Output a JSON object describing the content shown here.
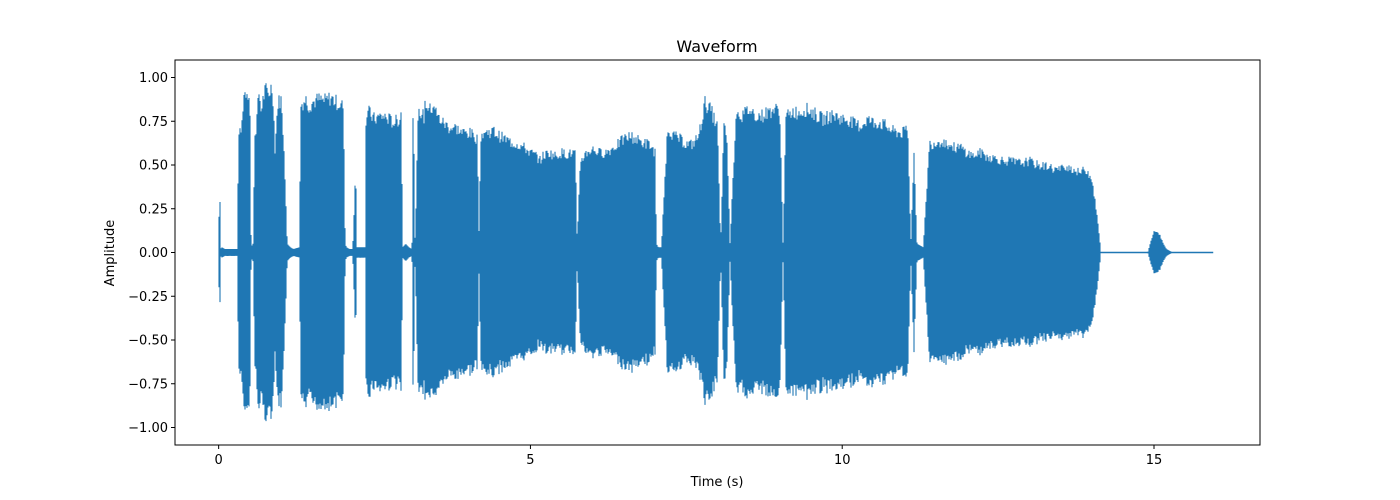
{
  "chart_data": {
    "type": "line",
    "title": "Waveform",
    "xlabel": "Time (s)",
    "ylabel": "Amplitude",
    "xlim": [
      -0.7,
      16.7
    ],
    "ylim": [
      -1.1,
      1.1
    ],
    "xticks": [
      0,
      5,
      10,
      15
    ],
    "xtick_labels": [
      "0",
      "5",
      "10",
      "15"
    ],
    "yticks": [
      1.0,
      0.75,
      0.5,
      0.25,
      0.0,
      -0.25,
      -0.5,
      -0.75,
      -1.0
    ],
    "ytick_labels": [
      "1.00",
      "0.75",
      "0.50",
      "0.25",
      "0.00",
      "−0.25",
      "−0.50",
      "−0.75",
      "−1.00"
    ],
    "grid": false,
    "legend": false,
    "color": "#1f77b4",
    "series": [
      {
        "envelope": {
          "t": [
            0.0,
            0.01,
            0.02,
            0.03,
            0.05,
            0.1,
            0.2,
            0.3,
            0.32,
            0.35,
            0.38,
            0.4,
            0.45,
            0.5,
            0.52,
            0.55,
            0.58,
            0.6,
            0.65,
            0.68,
            0.7,
            0.75,
            0.8,
            0.85,
            0.88,
            0.9,
            0.95,
            1.0,
            1.05,
            1.1,
            1.15,
            1.2,
            1.3,
            1.31,
            1.35,
            1.4,
            1.45,
            1.5,
            1.6,
            1.7,
            1.8,
            1.9,
            2.0,
            2.03,
            2.05,
            2.1,
            2.15,
            2.2,
            2.21,
            2.25,
            2.3,
            2.35,
            2.36,
            2.4,
            2.45,
            2.5,
            2.6,
            2.7,
            2.8,
            2.9,
            2.93,
            2.95,
            3.0,
            3.05,
            3.1,
            3.12,
            3.15,
            3.2,
            3.25,
            3.3,
            3.31,
            3.35,
            3.4,
            3.45,
            3.5,
            3.55,
            3.6,
            3.7,
            3.8,
            3.9,
            4.0,
            4.1,
            4.15,
            4.18,
            4.2,
            4.25,
            4.3,
            4.4,
            4.5,
            4.6,
            4.7,
            4.8,
            4.9,
            5.0,
            5.1,
            5.15,
            5.2,
            5.3,
            5.4,
            5.5,
            5.6,
            5.7,
            5.72,
            5.75,
            5.8,
            5.9,
            6.0,
            6.1,
            6.2,
            6.3,
            6.4,
            6.5,
            6.6,
            6.7,
            6.8,
            6.9,
            7.0,
            7.02,
            7.05,
            7.1,
            7.2,
            7.3,
            7.4,
            7.5,
            7.6,
            7.7,
            7.8,
            7.9,
            8.0,
            8.05,
            8.1,
            8.15,
            8.2,
            8.3,
            8.4,
            8.5,
            8.6,
            8.7,
            8.8,
            8.9,
            9.0,
            9.05,
            9.1,
            9.15,
            9.2,
            9.3,
            9.4,
            9.5,
            9.6,
            9.7,
            9.8,
            9.9,
            10.0,
            10.1,
            10.2,
            10.3,
            10.4,
            10.5,
            10.6,
            10.7,
            10.8,
            10.9,
            11.0,
            11.05,
            11.1,
            11.15,
            11.2,
            11.3,
            11.4,
            11.5,
            11.6,
            11.7,
            11.8,
            11.9,
            12.0,
            12.1,
            12.2,
            12.3,
            12.4,
            12.5,
            12.6,
            12.7,
            12.8,
            12.9,
            13.0,
            13.1,
            13.2,
            13.3,
            13.4,
            13.5,
            13.6,
            13.7,
            13.8,
            13.9,
            14.0,
            14.05,
            14.1,
            14.15,
            14.2,
            14.3,
            14.5,
            14.7,
            14.9,
            15.0,
            15.05,
            15.1,
            15.15,
            15.2,
            15.25,
            15.3,
            15.4,
            15.6,
            15.8,
            15.9,
            15.95
          ],
          "amp": [
            0.0,
            0.38,
            0.37,
            0.02,
            0.03,
            0.02,
            0.02,
            0.02,
            0.75,
            0.7,
            0.8,
            0.95,
            0.97,
            0.95,
            0.05,
            0.03,
            0.7,
            0.75,
            0.97,
            0.85,
            0.9,
            0.98,
            0.95,
            1.0,
            0.9,
            0.6,
            0.9,
            0.92,
            0.62,
            0.05,
            0.03,
            0.02,
            0.03,
            0.88,
            0.9,
            0.92,
            0.88,
            0.9,
            0.92,
            0.91,
            0.93,
            0.9,
            0.88,
            0.05,
            0.03,
            0.02,
            0.02,
            0.52,
            0.03,
            0.03,
            0.03,
            0.03,
            0.78,
            0.85,
            0.82,
            0.8,
            0.82,
            0.81,
            0.78,
            0.8,
            0.85,
            0.03,
            0.05,
            0.03,
            0.02,
            0.98,
            0.05,
            0.82,
            0.85,
            0.8,
            0.9,
            0.88,
            0.85,
            0.9,
            0.82,
            0.8,
            0.78,
            0.75,
            0.75,
            0.72,
            0.72,
            0.7,
            0.68,
            0.03,
            0.7,
            0.72,
            0.72,
            0.73,
            0.7,
            0.68,
            0.66,
            0.65,
            0.63,
            0.6,
            0.58,
            0.55,
            0.58,
            0.6,
            0.58,
            0.6,
            0.59,
            0.6,
            0.6,
            0.05,
            0.55,
            0.6,
            0.62,
            0.6,
            0.6,
            0.62,
            0.65,
            0.68,
            0.7,
            0.68,
            0.66,
            0.65,
            0.6,
            0.05,
            0.03,
            0.03,
            0.75,
            0.7,
            0.68,
            0.65,
            0.65,
            0.7,
            0.9,
            0.85,
            0.75,
            0.03,
            0.75,
            0.7,
            0.05,
            0.85,
            0.82,
            0.86,
            0.83,
            0.82,
            0.84,
            0.86,
            0.85,
            0.05,
            0.83,
            0.82,
            0.85,
            0.84,
            0.86,
            0.85,
            0.82,
            0.8,
            0.82,
            0.82,
            0.8,
            0.8,
            0.77,
            0.76,
            0.8,
            0.78,
            0.78,
            0.76,
            0.73,
            0.72,
            0.72,
            0.75,
            0.05,
            0.6,
            0.05,
            0.03,
            0.65,
            0.66,
            0.67,
            0.65,
            0.63,
            0.63,
            0.6,
            0.58,
            0.6,
            0.58,
            0.57,
            0.56,
            0.55,
            0.55,
            0.54,
            0.54,
            0.55,
            0.53,
            0.52,
            0.52,
            0.5,
            0.5,
            0.52,
            0.5,
            0.48,
            0.5,
            0.45,
            0.32,
            0.18,
            0.0,
            0.0,
            0.0,
            0.0,
            0.0,
            0.0,
            0.13,
            0.12,
            0.1,
            0.05,
            0.02,
            0.01,
            0.0,
            0.0,
            0.0,
            0.0,
            0.0
          ]
        }
      }
    ]
  }
}
